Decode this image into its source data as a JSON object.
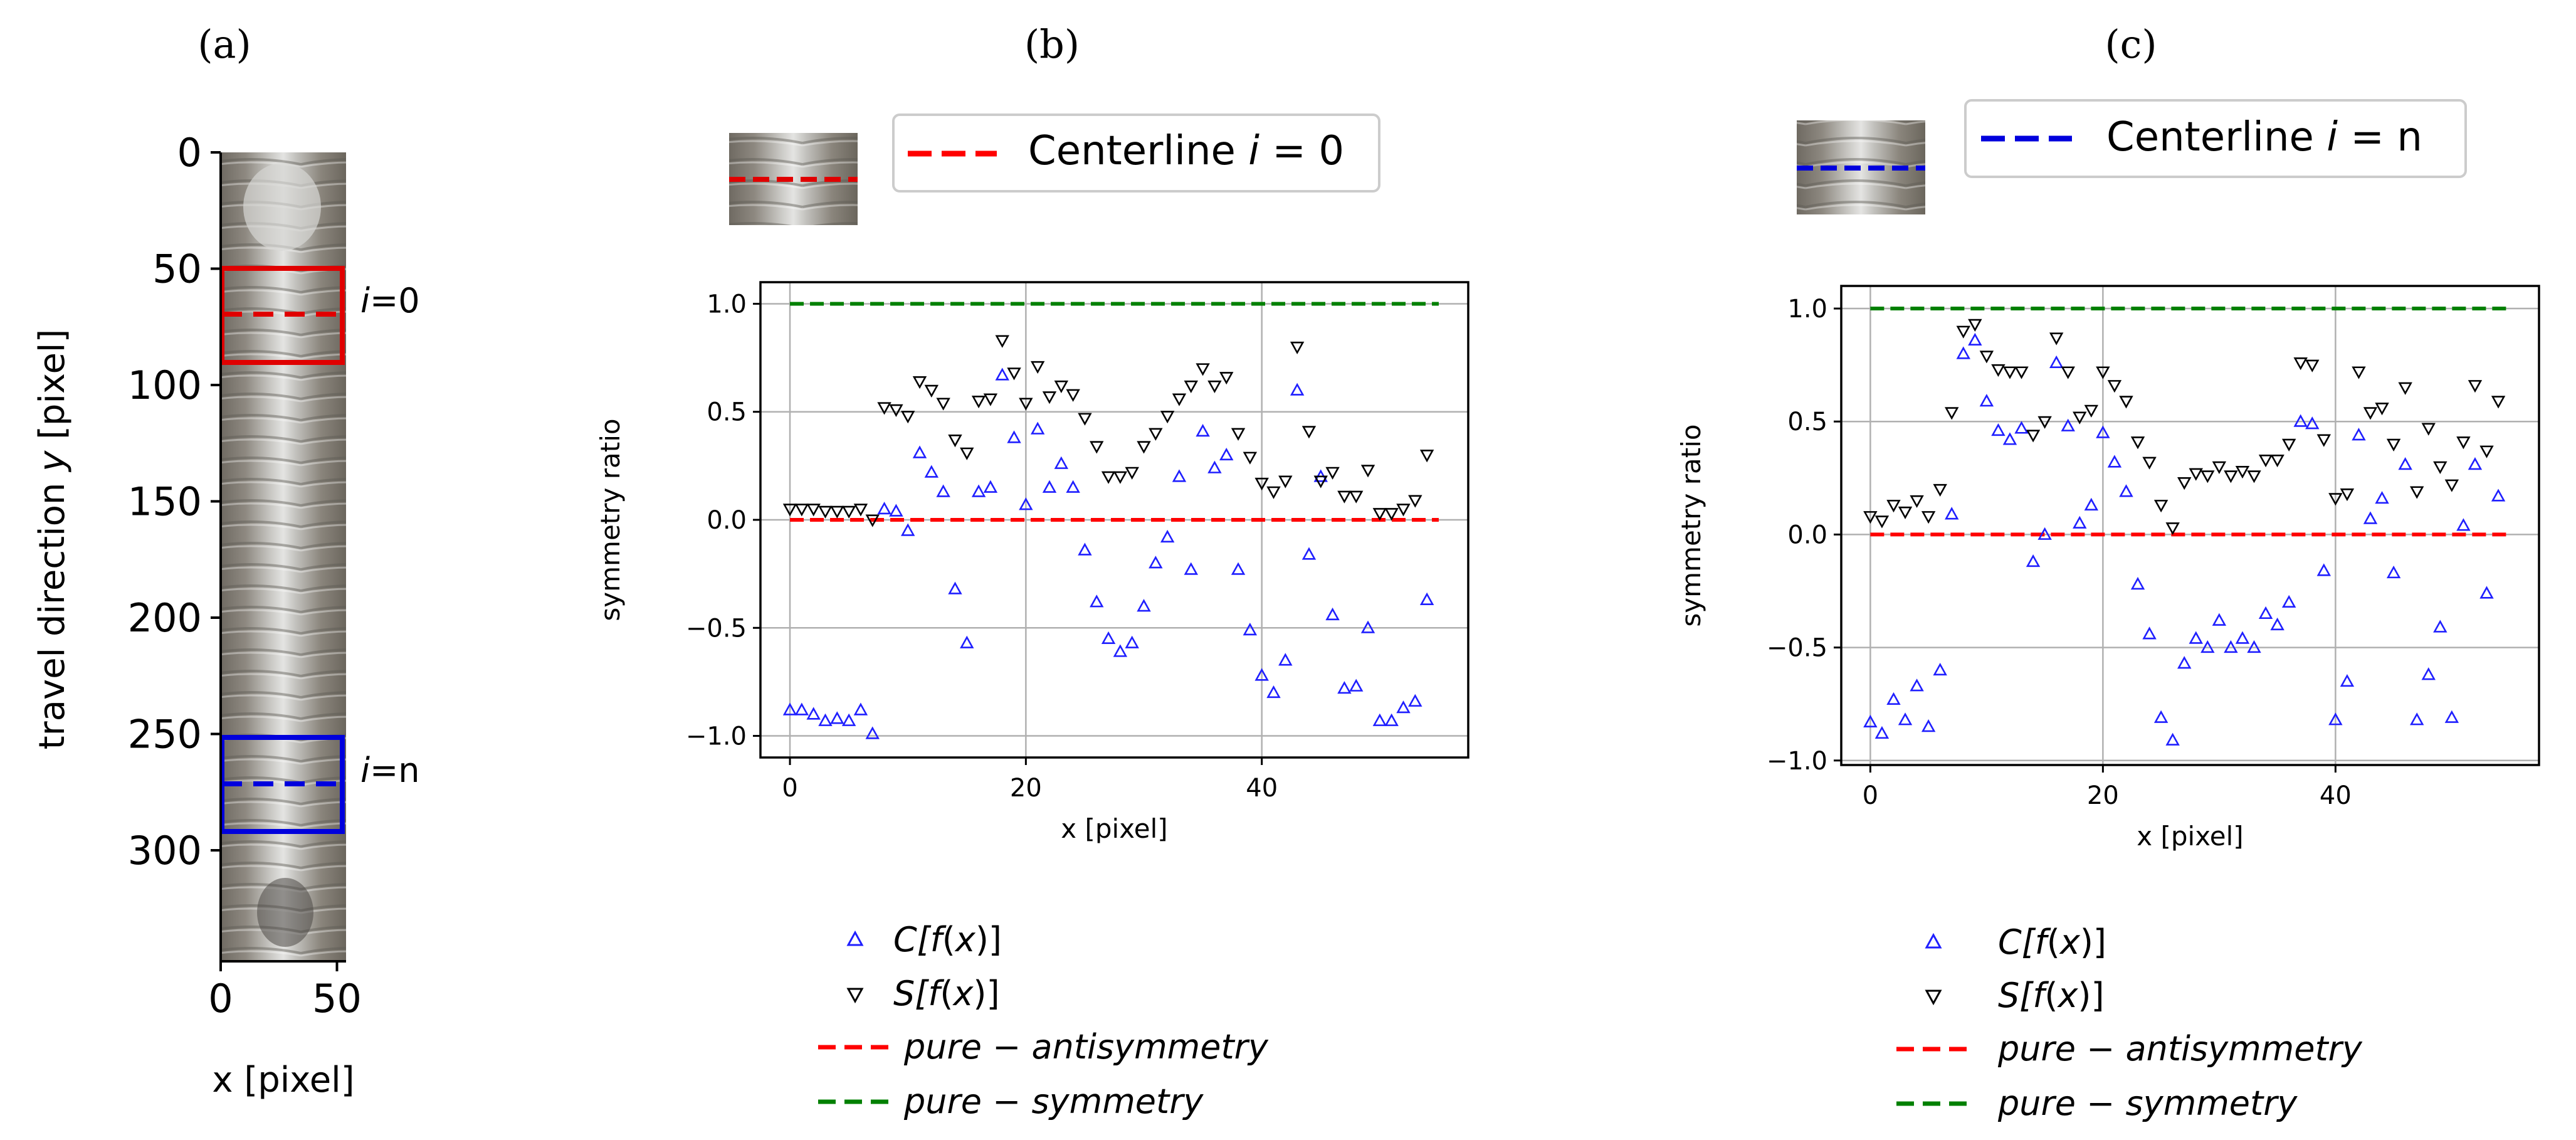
{
  "panel_labels": [
    "(a)",
    "(b)",
    "(c)"
  ],
  "colors": {
    "c_marker": "#1f1fff",
    "s_marker": "#000000",
    "antisymmetry": "#ff0000",
    "symmetry": "#008000",
    "box_top": "#e00000",
    "box_bottom": "#0000dd"
  },
  "panel_a": {
    "xlabel": "x [pixel]",
    "ylabel": "travel direction y [pixel]",
    "ylabel_prefix": "travel direction ",
    "ylabel_var": "y",
    "ylabel_suffix": " [pixel]",
    "x_ticks": [
      "0",
      "50"
    ],
    "y_ticks": [
      "0",
      "50",
      "100",
      "150",
      "200",
      "250",
      "300"
    ],
    "box_top_label_var": "i",
    "box_top_label_val": "=0",
    "box_bottom_label_var": "i",
    "box_bottom_label_val": "=n",
    "box_top_range": [
      50,
      90
    ],
    "box_bottom_range": [
      250,
      290
    ],
    "centerline_top": 70,
    "centerline_bottom": 270
  },
  "legend_b_centerline": {
    "prefix": "Centerline ",
    "var": "i",
    "suffix": " = 0"
  },
  "legend_c_centerline": {
    "prefix": "Centerline ",
    "var": "i",
    "suffix": " = n"
  },
  "legend_series": [
    {
      "label_pre": "C[",
      "label_fn": "f",
      "label_mid": "(",
      "label_var": "x",
      "label_post": ")]"
    },
    {
      "label_pre": "S[",
      "label_fn": "f",
      "label_mid": "(",
      "label_var": "x",
      "label_post": ")]"
    },
    {
      "label_text": "pure − antisymmetry"
    },
    {
      "label_text": "pure − symmetry"
    }
  ],
  "chart_data": [
    {
      "type": "scatter",
      "panel": "b",
      "title": "",
      "xlabel": "x [pixel]",
      "ylabel": "symmetry ratio",
      "xlim": [
        -2.5,
        57.5
      ],
      "ylim": [
        -1.1,
        1.1
      ],
      "x_ticks": [
        0,
        20,
        40
      ],
      "y_ticks": [
        -1.0,
        -0.5,
        0.0,
        0.5,
        1.0
      ],
      "x_tick_labels": [
        "0",
        "20",
        "40"
      ],
      "y_tick_labels": [
        "−1.0",
        "−0.5",
        "0.0",
        "0.5",
        "1.0"
      ],
      "grid": true,
      "series": [
        {
          "name": "C[f(x)]",
          "marker": "triangle-up",
          "x": [
            0,
            1,
            2,
            3,
            4,
            5,
            6,
            7,
            8,
            9,
            10,
            11,
            12,
            13,
            14,
            15,
            16,
            17,
            18,
            19,
            20,
            21,
            22,
            23,
            24,
            25,
            26,
            27,
            28,
            29,
            30,
            31,
            32,
            33,
            34,
            35,
            36,
            37,
            38,
            39,
            40,
            41,
            42,
            43,
            44,
            45,
            46,
            47,
            48,
            49,
            50,
            51,
            52,
            53,
            54,
            55
          ],
          "values": [
            -0.88,
            -0.88,
            -0.9,
            -0.93,
            -0.92,
            -0.93,
            -0.88,
            -0.99,
            0.05,
            0.04,
            -0.05,
            0.31,
            0.22,
            0.13,
            -0.32,
            -0.57,
            0.13,
            0.15,
            0.67,
            0.38,
            0.07,
            0.42,
            0.15,
            0.26,
            0.15,
            -0.14,
            -0.38,
            -0.55,
            -0.61,
            -0.57,
            -0.4,
            -0.2,
            -0.08,
            0.2,
            -0.23,
            0.41,
            0.24,
            0.3,
            -0.23,
            -0.51,
            -0.72,
            -0.8,
            -0.65,
            0.6,
            -0.16,
            0.2,
            -0.44,
            -0.78,
            -0.77,
            -0.5,
            -0.93,
            -0.93,
            -0.87,
            -0.84,
            -0.37,
            null
          ]
        },
        {
          "name": "S[f(x)]",
          "marker": "triangle-down",
          "x": [
            0,
            1,
            2,
            3,
            4,
            5,
            6,
            7,
            8,
            9,
            10,
            11,
            12,
            13,
            14,
            15,
            16,
            17,
            18,
            19,
            20,
            21,
            22,
            23,
            24,
            25,
            26,
            27,
            28,
            29,
            30,
            31,
            32,
            33,
            34,
            35,
            36,
            37,
            38,
            39,
            40,
            41,
            42,
            43,
            44,
            45,
            46,
            47,
            48,
            49,
            50,
            51,
            52,
            53,
            54,
            55
          ],
          "values": [
            0.05,
            0.05,
            0.05,
            0.04,
            0.04,
            0.04,
            0.05,
            0.0,
            0.52,
            0.51,
            0.48,
            0.64,
            0.6,
            0.54,
            0.37,
            0.31,
            0.55,
            0.56,
            0.83,
            0.68,
            0.54,
            0.71,
            0.57,
            0.62,
            0.58,
            0.47,
            0.34,
            0.2,
            0.2,
            0.22,
            0.34,
            0.4,
            0.48,
            0.56,
            0.62,
            0.7,
            0.62,
            0.66,
            0.4,
            0.29,
            0.17,
            0.13,
            0.18,
            0.8,
            0.41,
            0.18,
            0.22,
            0.11,
            0.11,
            0.23,
            0.03,
            0.03,
            0.05,
            0.09,
            0.3,
            null
          ]
        },
        {
          "name": "pure − antisymmetry",
          "type": "line",
          "x": [
            0,
            55
          ],
          "values": [
            0.0,
            0.0
          ]
        },
        {
          "name": "pure − symmetry",
          "type": "line",
          "x": [
            0,
            55
          ],
          "values": [
            1.0,
            1.0
          ]
        }
      ]
    },
    {
      "type": "scatter",
      "panel": "c",
      "title": "",
      "xlabel": "x [pixel]",
      "ylabel": "symmetry ratio",
      "xlim": [
        -2.5,
        57.5
      ],
      "ylim": [
        -1.02,
        1.1
      ],
      "x_ticks": [
        0,
        20,
        40
      ],
      "y_ticks": [
        -1.0,
        -0.5,
        0.0,
        0.5,
        1.0
      ],
      "x_tick_labels": [
        "0",
        "20",
        "40"
      ],
      "y_tick_labels": [
        "−1.0",
        "−0.5",
        "0.0",
        "0.5",
        "1.0"
      ],
      "grid": true,
      "series": [
        {
          "name": "C[f(x)]",
          "marker": "triangle-up",
          "x": [
            0,
            1,
            2,
            3,
            4,
            5,
            6,
            7,
            8,
            9,
            10,
            11,
            12,
            13,
            14,
            15,
            16,
            17,
            18,
            19,
            20,
            21,
            22,
            23,
            24,
            25,
            26,
            27,
            28,
            29,
            30,
            31,
            32,
            33,
            34,
            35,
            36,
            37,
            38,
            39,
            40,
            41,
            42,
            43,
            44,
            45,
            46,
            47,
            48,
            49,
            50,
            51,
            52,
            53,
            54
          ],
          "values": [
            -0.83,
            -0.88,
            -0.73,
            -0.82,
            -0.67,
            -0.85,
            -0.6,
            0.09,
            0.8,
            0.86,
            0.59,
            0.46,
            0.42,
            0.47,
            -0.12,
            0.0,
            0.76,
            0.48,
            0.05,
            0.13,
            0.45,
            0.32,
            0.19,
            -0.22,
            -0.44,
            -0.81,
            -0.91,
            -0.57,
            -0.46,
            -0.5,
            -0.38,
            -0.5,
            -0.46,
            -0.5,
            -0.35,
            -0.4,
            -0.3,
            0.5,
            0.49,
            -0.16,
            -0.82,
            -0.65,
            0.44,
            0.07,
            0.16,
            -0.17,
            0.31,
            -0.82,
            -0.62,
            -0.41,
            -0.81,
            0.04,
            0.31,
            -0.26,
            0.17
          ]
        },
        {
          "name": "S[f(x)]",
          "marker": "triangle-down",
          "x": [
            0,
            1,
            2,
            3,
            4,
            5,
            6,
            7,
            8,
            9,
            10,
            11,
            12,
            13,
            14,
            15,
            16,
            17,
            18,
            19,
            20,
            21,
            22,
            23,
            24,
            25,
            26,
            27,
            28,
            29,
            30,
            31,
            32,
            33,
            34,
            35,
            36,
            37,
            38,
            39,
            40,
            41,
            42,
            43,
            44,
            45,
            46,
            47,
            48,
            49,
            50,
            51,
            52,
            53,
            54
          ],
          "values": [
            0.08,
            0.06,
            0.13,
            0.1,
            0.15,
            0.08,
            0.2,
            0.54,
            0.9,
            0.93,
            0.79,
            0.73,
            0.72,
            0.72,
            0.44,
            0.5,
            0.87,
            0.72,
            0.52,
            0.55,
            0.72,
            0.66,
            0.59,
            0.41,
            0.32,
            0.13,
            0.03,
            0.23,
            0.27,
            0.26,
            0.3,
            0.26,
            0.28,
            0.26,
            0.33,
            0.33,
            0.4,
            0.76,
            0.75,
            0.42,
            0.16,
            0.18,
            0.72,
            0.54,
            0.56,
            0.4,
            0.65,
            0.19,
            0.47,
            0.3,
            0.22,
            0.41,
            0.66,
            0.37,
            0.59
          ]
        },
        {
          "name": "pure − antisymmetry",
          "type": "line",
          "x": [
            0,
            55
          ],
          "values": [
            0.0,
            0.0
          ]
        },
        {
          "name": "pure − symmetry",
          "type": "line",
          "x": [
            0,
            55
          ],
          "values": [
            1.0,
            1.0
          ]
        }
      ]
    }
  ]
}
